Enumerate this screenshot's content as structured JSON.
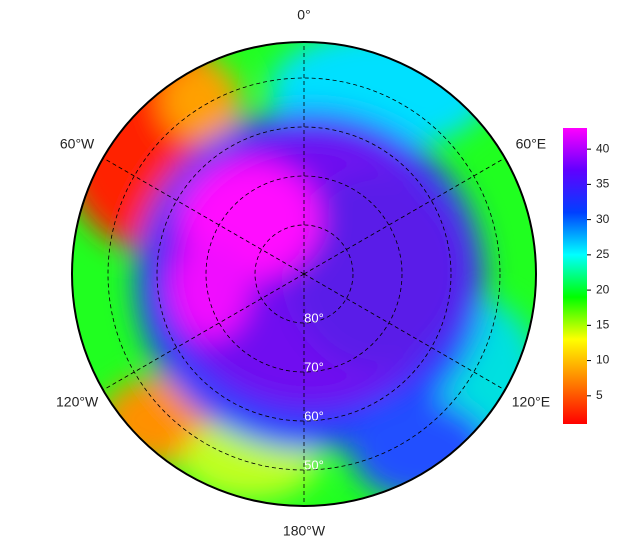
{
  "map": {
    "lon_labels": [
      {
        "value": 0,
        "label": "0°"
      },
      {
        "value": 60,
        "label": "60°E"
      },
      {
        "value": 120,
        "label": "120°E"
      },
      {
        "value": 180,
        "label": "180°W"
      },
      {
        "value": -120,
        "label": "120°W"
      },
      {
        "value": -60,
        "label": "60°W"
      }
    ],
    "lat_labels": [
      {
        "value": 80,
        "label": "80°"
      },
      {
        "value": 70,
        "label": "70°"
      },
      {
        "value": 60,
        "label": "60°"
      },
      {
        "value": 50,
        "label": "50°"
      }
    ],
    "colorbar": {
      "lim": [
        1,
        43
      ],
      "ticks": [
        5,
        10,
        15,
        20,
        25,
        30,
        35,
        40
      ],
      "colors": [
        "#ff0000",
        "#ff8000",
        "#ffff00",
        "#00ff00",
        "#00ffff",
        "#0040ff",
        "#6000ff",
        "#ff00ff"
      ]
    }
  }
}
